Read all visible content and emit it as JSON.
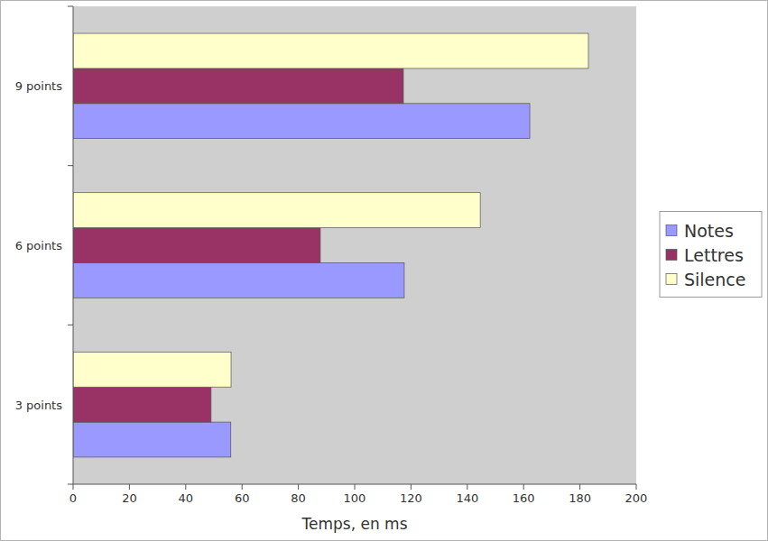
{
  "chart_data": {
    "type": "bar",
    "orientation": "horizontal",
    "categories": [
      "3 points",
      "6 points",
      "9 points"
    ],
    "series": [
      {
        "name": "Notes",
        "color": "#9999ff",
        "values": [
          56,
          117.6,
          162.2
        ]
      },
      {
        "name": "Lettres",
        "color": "#993366",
        "values": [
          49,
          87.8,
          117.3
        ]
      },
      {
        "name": "Silence",
        "color": "#ffffcc",
        "values": [
          56.1,
          144.6,
          183
        ]
      }
    ],
    "x_label": "Temps, en ms",
    "xlim": [
      0,
      200
    ],
    "xticks": [
      0,
      20,
      40,
      60,
      80,
      100,
      120,
      140,
      160,
      180,
      200
    ],
    "grid": false,
    "legend": "right"
  }
}
